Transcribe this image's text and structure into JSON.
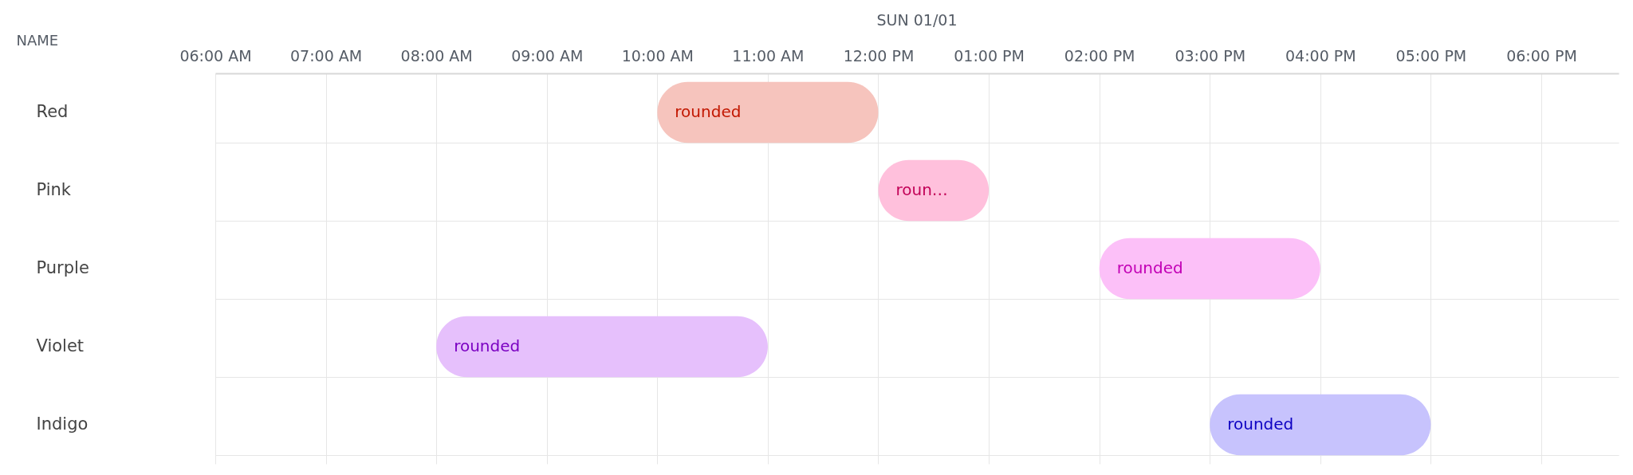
{
  "chart_data": {
    "type": "bar",
    "orientation": "horizontal",
    "title": "SUN 01/01",
    "ylabel": "NAME",
    "categories": [
      "Red",
      "Pink",
      "Purple",
      "Violet",
      "Indigo"
    ],
    "base": [
      10,
      12,
      14,
      8,
      15
    ],
    "values": [
      2,
      1,
      2,
      3,
      2
    ],
    "colors": [
      "#f6c4bd",
      "#ffc0dc",
      "#fcc0f8",
      "#e6c0fc",
      "#c7c3fd"
    ],
    "value_labels": [
      "rounded",
      "roun…",
      "rounded",
      "rounded",
      "rounded"
    ],
    "xlim": [
      6,
      18.7
    ],
    "xticks": [
      {
        "value": 6,
        "label": "06:00 AM"
      },
      {
        "value": 7,
        "label": "07:00 AM"
      },
      {
        "value": 8,
        "label": "08:00 AM"
      },
      {
        "value": 9,
        "label": "09:00 AM"
      },
      {
        "value": 10,
        "label": "10:00 AM"
      },
      {
        "value": 11,
        "label": "11:00 AM"
      },
      {
        "value": 12,
        "label": "12:00 PM"
      },
      {
        "value": 13,
        "label": "01:00 PM"
      },
      {
        "value": 14,
        "label": "02:00 PM"
      },
      {
        "value": 15,
        "label": "03:00 PM"
      },
      {
        "value": 16,
        "label": "04:00 PM"
      },
      {
        "value": 17,
        "label": "05:00 PM"
      },
      {
        "value": 18,
        "label": "06:00 PM"
      }
    ],
    "grid": true
  }
}
